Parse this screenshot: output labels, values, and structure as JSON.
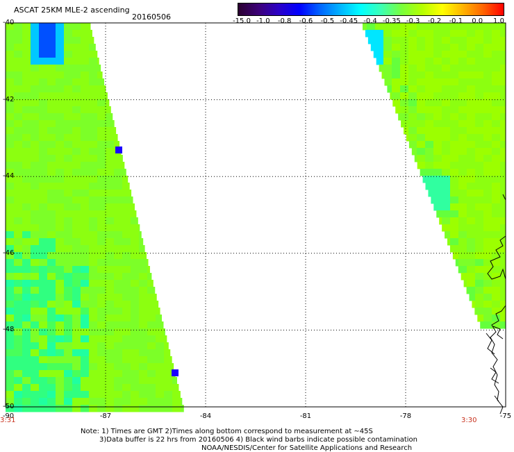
{
  "header": {
    "title": "ASCAT 25KM MLE-2 ascending",
    "date": "20160506"
  },
  "colorbar": {
    "labels": [
      "-15.0",
      "-1.0",
      "-0.8",
      "-0.6",
      "-0.5",
      "-0.45",
      "-0.4",
      "-0.35",
      "-0.3",
      "-0.2",
      "-0.1",
      "0.0",
      "1.0"
    ],
    "colors": [
      "#2a0030",
      "#3c0078",
      "#2a00c8",
      "#0000ff",
      "#0064ff",
      "#00b4ff",
      "#00ffff",
      "#3cffb4",
      "#78ff3c",
      "#b4ff00",
      "#ffff00",
      "#ffb400",
      "#ff6400",
      "#ff0000"
    ]
  },
  "axes": {
    "lat_labels": [
      "-40",
      "-42",
      "-44",
      "-46",
      "-48",
      "-50"
    ],
    "lon_labels": [
      "-90",
      "-87",
      "-84",
      "-81",
      "-78",
      "-75"
    ]
  },
  "times": {
    "left": "3:31",
    "right": "3:30"
  },
  "notes": {
    "line1": "Note: 1) Times are GMT 2)Times along bottom correspond to measurement at ~45S",
    "line2": "3)Data buffer is 22 hrs from 20160506 4) Black wind barbs indicate possible contamination",
    "line3": "NOAA/NESDIS/Center for Satellite Applications and Research"
  }
}
